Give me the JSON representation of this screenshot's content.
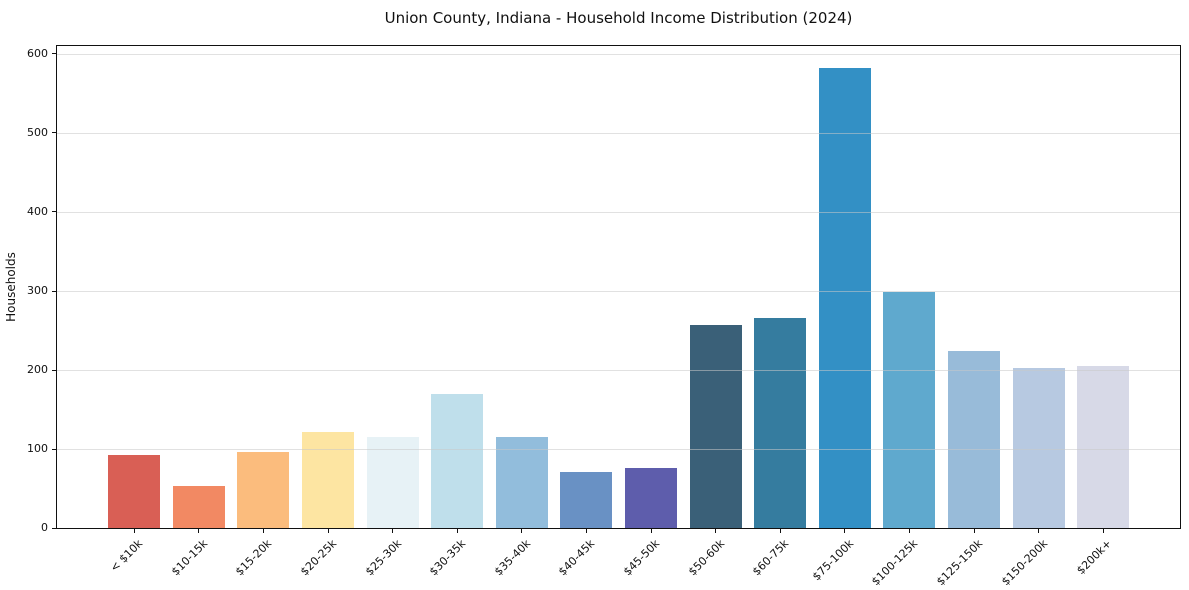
{
  "chart_data": {
    "type": "bar",
    "title": "Union County, Indiana - Household Income Distribution (2024)",
    "xlabel": "",
    "ylabel": "Households",
    "categories": [
      "< $10k",
      "$10-15k",
      "$15-20k",
      "$20-25k",
      "$25-30k",
      "$30-35k",
      "$35-40k",
      "$40-45k",
      "$45-50k",
      "$50-60k",
      "$60-75k",
      "$75-100k",
      "$100-125k",
      "$125-150k",
      "$150-200k",
      "$200k+"
    ],
    "values": [
      92,
      53,
      96,
      122,
      115,
      170,
      115,
      71,
      76,
      257,
      266,
      582,
      299,
      224,
      202,
      205
    ],
    "bar_colors": [
      "#d95f55",
      "#f28963",
      "#fbbc7d",
      "#fde5a2",
      "#e7f2f6",
      "#bfdfeb",
      "#92bddc",
      "#6991c4",
      "#5e5dac",
      "#3a6078",
      "#357c9f",
      "#3390c5",
      "#5fa9ce",
      "#98bbd9",
      "#b7c9e1",
      "#d7d9e7"
    ],
    "yticks": [
      0,
      100,
      200,
      300,
      400,
      500,
      600
    ],
    "ylim": [
      0,
      610
    ],
    "grid": true,
    "grid_on_top_of_bars": true,
    "legend_position": "none",
    "background_color": "#ffffff",
    "spine_color": "#111111",
    "x_tick_rotation_deg": 45
  }
}
